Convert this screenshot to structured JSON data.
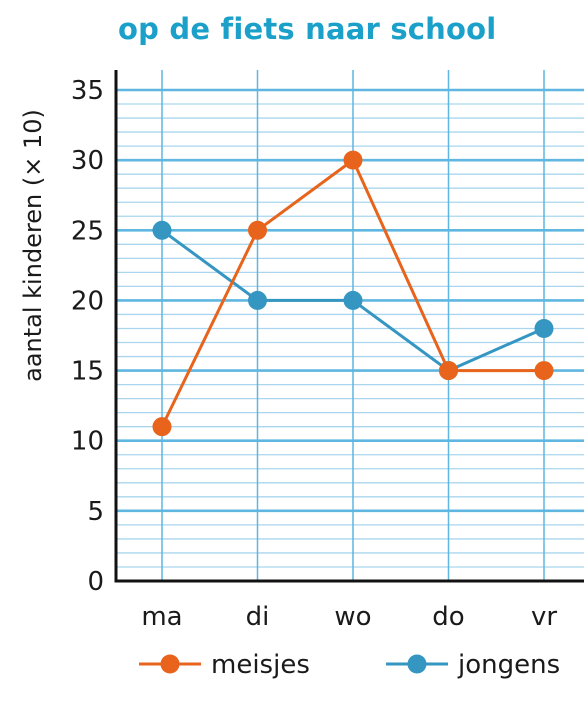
{
  "chart_data": {
    "type": "line",
    "title": "op de fiets naar school",
    "ylabel": "aantal kinderen (× 10)",
    "xlabel": "",
    "categories": [
      "ma",
      "di",
      "wo",
      "do",
      "vr"
    ],
    "ylim": [
      0,
      35
    ],
    "yticks": [
      0,
      5,
      10,
      15,
      20,
      25,
      30,
      35
    ],
    "minor_step": 1,
    "grid": true,
    "legend_position": "bottom",
    "series": [
      {
        "name": "meisjes",
        "values": [
          11,
          25,
          30,
          15,
          15
        ],
        "color": "#e8641c"
      },
      {
        "name": "jongens",
        "values": [
          25,
          20,
          20,
          15,
          18
        ],
        "color": "#3596c2"
      }
    ]
  },
  "colors": {
    "title": "#1aa0c9",
    "grid_major": "#5fb6e0",
    "grid_minor": "#a9d6ee",
    "axis": "#111111"
  }
}
